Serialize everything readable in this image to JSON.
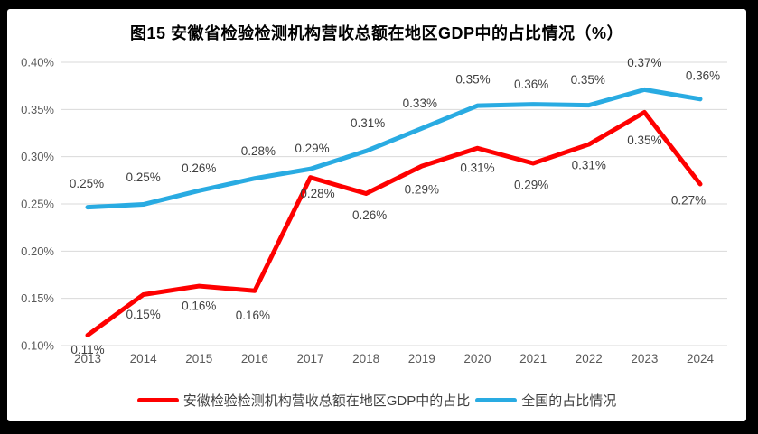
{
  "window": {
    "frame_color": "#000000",
    "panel_color": "#ffffff"
  },
  "chart_data": {
    "type": "line",
    "title": "图15 安徽省检验检测机构营收总额在地区GDP中的占比情况（%）",
    "categories": [
      "2013",
      "2014",
      "2015",
      "2016",
      "2017",
      "2018",
      "2019",
      "2020",
      "2021",
      "2022",
      "2023",
      "2024"
    ],
    "xlabel": "",
    "ylabel": "",
    "y_axis": {
      "tick_labels": [
        "0.40%",
        "0.35%",
        "0.30%",
        "0.25%",
        "0.20%",
        "0.15%",
        "0.10%"
      ],
      "min": 0.1,
      "max": 0.4,
      "step": 0.05,
      "unit": "%"
    },
    "grid": "horizontal",
    "gridline_color": "#d9d9d9",
    "axis_text_color": "#595959",
    "data_label_color": "#3f3f3f",
    "legend_position": "bottom",
    "series": [
      {
        "name": "安徽检验检测机构营收总额在地区GDP中的占比",
        "color": "#fe0000",
        "values": [
          0.11,
          0.15,
          0.16,
          0.16,
          0.28,
          0.26,
          0.29,
          0.31,
          0.29,
          0.31,
          0.35,
          0.27
        ],
        "labels": [
          "0.11%",
          "0.15%",
          "0.16%",
          "0.16%",
          "0.28%",
          "0.26%",
          "0.29%",
          "0.31%",
          "0.29%",
          "0.31%",
          "0.35%",
          "0.27%"
        ],
        "plot_values": [
          0.111,
          0.154,
          0.163,
          0.158,
          0.278,
          0.261,
          0.29,
          0.309,
          0.293,
          0.313,
          0.347,
          0.271
        ],
        "label_side": "below",
        "label_offsets": [
          [
            0,
            16
          ],
          [
            0,
            22
          ],
          [
            0,
            22
          ],
          [
            -2,
            27
          ],
          [
            8,
            18
          ],
          [
            4,
            24
          ],
          [
            0,
            26
          ],
          [
            0,
            22
          ],
          [
            -2,
            24
          ],
          [
            0,
            23
          ],
          [
            0,
            31
          ],
          [
            -13,
            18
          ]
        ]
      },
      {
        "name": "全国的占比情况",
        "color": "#29abe2",
        "values": [
          0.25,
          0.25,
          0.26,
          0.28,
          0.29,
          0.31,
          0.33,
          0.35,
          0.36,
          0.35,
          0.37,
          0.36
        ],
        "labels": [
          "0.25%",
          "0.25%",
          "0.26%",
          "0.28%",
          "0.29%",
          "0.31%",
          "0.33%",
          "0.35%",
          "0.36%",
          "0.35%",
          "0.37%",
          "0.36%"
        ],
        "plot_values": [
          0.2465,
          0.2495,
          0.264,
          0.277,
          0.287,
          0.306,
          0.33,
          0.354,
          0.3555,
          0.3545,
          0.371,
          0.361
        ],
        "label_side": "above",
        "label_offsets": [
          [
            -1,
            -26
          ],
          [
            0,
            -30
          ],
          [
            0,
            -25
          ],
          [
            4,
            -30
          ],
          [
            2,
            -23
          ],
          [
            2,
            -31
          ],
          [
            -2,
            -28
          ],
          [
            -5,
            -29
          ],
          [
            -2,
            -22
          ],
          [
            -1,
            -28
          ],
          [
            0,
            -30
          ],
          [
            3,
            -26
          ]
        ]
      }
    ]
  }
}
